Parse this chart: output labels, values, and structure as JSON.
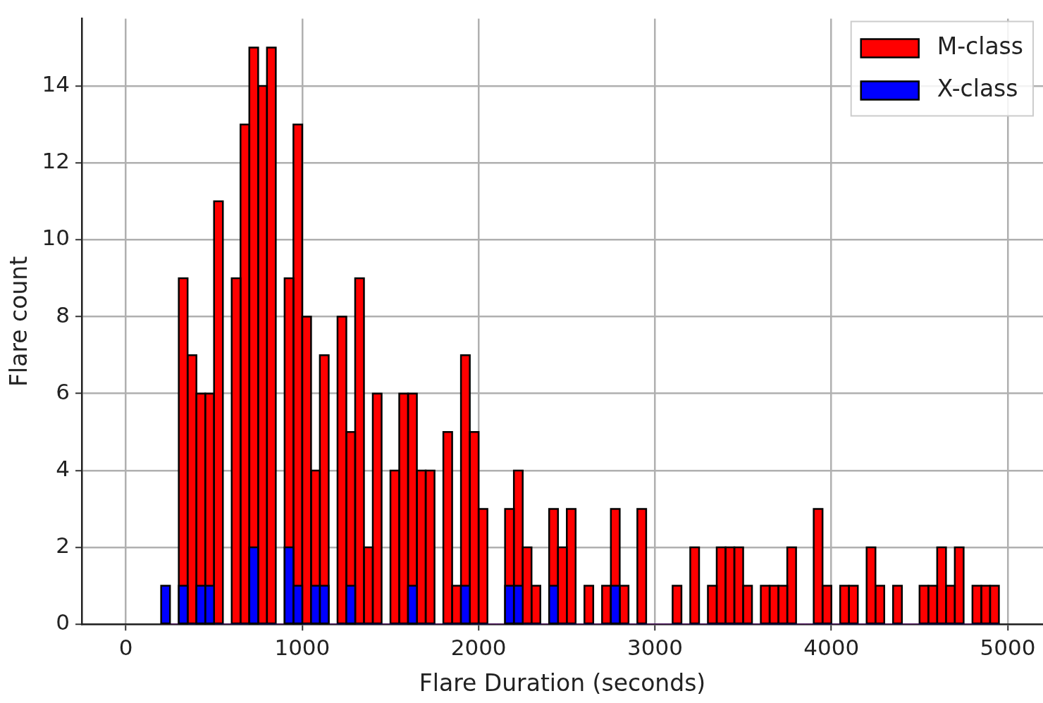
{
  "chart_data": {
    "type": "histogram",
    "xlabel": "Flare Duration (seconds)",
    "ylabel": "Flare count",
    "bins": [
      200,
      250,
      300,
      350,
      400,
      450,
      500,
      550,
      600,
      650,
      700,
      750,
      800,
      850,
      900,
      950,
      1000,
      1050,
      1100,
      1150,
      1200,
      1250,
      1300,
      1350,
      1400,
      1450,
      1500,
      1550,
      1600,
      1650,
      1700,
      1750,
      1800,
      1850,
      1900,
      1950,
      2000,
      2050,
      2100,
      2150,
      2200,
      2250,
      2300,
      2350,
      2400,
      2450,
      2500,
      2550,
      2600,
      2650,
      2700,
      2750,
      2800,
      2850,
      2900,
      2950,
      3000,
      3050,
      3100,
      3150,
      3200,
      3250,
      3300,
      3350,
      3400,
      3450,
      3500,
      3550,
      3600,
      3650,
      3700,
      3750,
      3800,
      3850,
      3900,
      3950,
      4000,
      4050,
      4100,
      4150,
      4200,
      4250,
      4300,
      4350,
      4400,
      4450,
      4500,
      4550,
      4600,
      4650,
      4700,
      4750,
      4800,
      4850,
      4900,
      4950
    ],
    "series": [
      {
        "name": "M-class",
        "color": "#ff0000",
        "values": [
          0,
          0,
          9,
          7,
          6,
          6,
          11,
          0,
          9,
          13,
          15,
          14,
          15,
          0,
          9,
          13,
          8,
          4,
          7,
          0,
          8,
          5,
          9,
          2,
          6,
          0,
          4,
          6,
          6,
          4,
          4,
          0,
          5,
          1,
          7,
          5,
          3,
          0,
          0,
          3,
          4,
          2,
          1,
          0,
          3,
          2,
          3,
          0,
          1,
          0,
          1,
          3,
          1,
          0,
          3,
          0,
          0,
          0,
          1,
          0,
          2,
          0,
          1,
          2,
          2,
          2,
          1,
          0,
          1,
          1,
          1,
          2,
          0,
          0,
          3,
          1,
          0,
          1,
          1,
          0,
          2,
          1,
          0,
          1,
          0,
          0,
          1,
          1,
          2,
          1,
          2,
          0,
          1,
          1,
          1
        ]
      },
      {
        "name": "X-class",
        "color": "#0000ff",
        "values": [
          1,
          0,
          1,
          0,
          1,
          1,
          0,
          0,
          0,
          0,
          2,
          0,
          0,
          0,
          2,
          1,
          0,
          1,
          1,
          0,
          0,
          1,
          0,
          0,
          0,
          0,
          0,
          0,
          1,
          0,
          0,
          0,
          0,
          0,
          1,
          0,
          0,
          0,
          0,
          1,
          1,
          0,
          0,
          0,
          1,
          0,
          0,
          0,
          0,
          0,
          0,
          1,
          0,
          0,
          0,
          0,
          0,
          0,
          0,
          0,
          0,
          0,
          0,
          0,
          0,
          0,
          0,
          0,
          0,
          0,
          0,
          0,
          0,
          0,
          0,
          0,
          0,
          0,
          0,
          0,
          0,
          0,
          0,
          0,
          0,
          0,
          0,
          0,
          0,
          0,
          0,
          0,
          0,
          0,
          0
        ]
      }
    ],
    "xlim": [
      -250,
      5200
    ],
    "xticks": [
      0,
      1000,
      2000,
      3000,
      4000,
      5000
    ],
    "ylim": [
      0,
      15.75
    ],
    "yticks": [
      0,
      2,
      4,
      6,
      8,
      10,
      12,
      14
    ],
    "grid": true,
    "legend": "top right"
  }
}
